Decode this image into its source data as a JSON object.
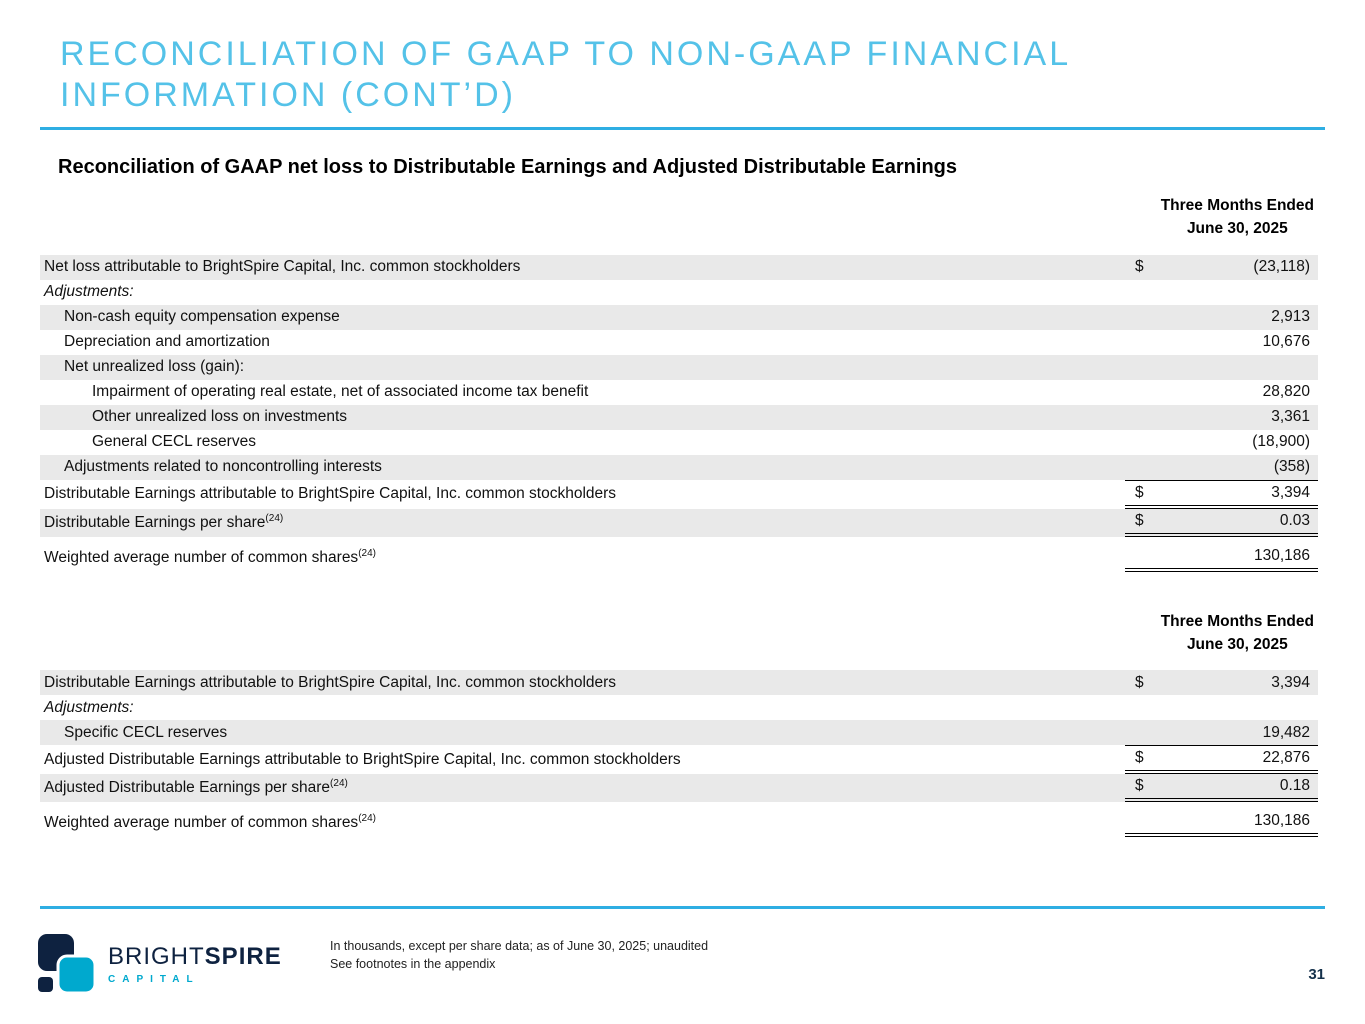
{
  "slide": {
    "title_line1": "RECONCILIATION OF GAAP TO NON-GAAP FINANCIAL",
    "title_line2": "INFORMATION (CONT’D)",
    "subtitle": "Reconciliation of GAAP net loss to Distributable Earnings and Adjusted Distributable Earnings"
  },
  "colors": {
    "accent_blue": "#54c2e8",
    "rule_blue": "#2faee3",
    "row_shade": "#e9e9e9",
    "logo_navy": "#0e2240",
    "logo_teal": "#00a9ce"
  },
  "table1": {
    "header_line1": "Three Months Ended",
    "header_line2": "June 30, 2025",
    "rows": [
      {
        "label": "Net loss attributable to BrightSpire Capital, Inc. common stockholders",
        "dollar": "$",
        "value": "(23,118)",
        "indent": 0,
        "shade": true
      },
      {
        "label": "Adjustments:",
        "italic": true,
        "indent": 0,
        "shade": false
      },
      {
        "label": "Non-cash equity compensation expense",
        "value": "2,913",
        "indent": 1,
        "shade": true
      },
      {
        "label": "Depreciation and amortization",
        "value": "10,676",
        "indent": 1,
        "shade": false
      },
      {
        "label": "Net unrealized loss (gain):",
        "indent": 1,
        "shade": true
      },
      {
        "label": "Impairment of operating real estate, net of associated income tax benefit",
        "value": "28,820",
        "indent": 2,
        "shade": false
      },
      {
        "label": "Other unrealized loss on investments",
        "value": "3,361",
        "indent": 2,
        "shade": true
      },
      {
        "label": "General CECL reserves",
        "value": "(18,900)",
        "indent": 2,
        "shade": false
      },
      {
        "label": "Adjustments related to noncontrolling interests",
        "value": "(358)",
        "indent": 1,
        "shade": true
      },
      {
        "label": "Distributable Earnings attributable to BrightSpire Capital, Inc. common stockholders",
        "dollar": "$",
        "value": "3,394",
        "indent": 0,
        "shade": false,
        "topline": true,
        "dbl": true
      },
      {
        "label": "Distributable Earnings per share",
        "sup": "(24)",
        "dollar": "$",
        "value": "0.03",
        "indent": 0,
        "shade": true,
        "dbl": true
      },
      {
        "label": "Weighted average number of common shares",
        "sup": "(24)",
        "value": "130,186",
        "indent": 0,
        "shade": false,
        "dbl": true,
        "gap": true
      }
    ]
  },
  "table2": {
    "header_line1": "Three Months Ended",
    "header_line2": "June 30, 2025",
    "rows": [
      {
        "label": "Distributable Earnings attributable to BrightSpire Capital, Inc. common stockholders",
        "dollar": "$",
        "value": "3,394",
        "indent": 0,
        "shade": true
      },
      {
        "label": "Adjustments:",
        "italic": true,
        "indent": 0,
        "shade": false
      },
      {
        "label": "Specific CECL reserves",
        "value": "19,482",
        "indent": 1,
        "shade": true
      },
      {
        "label": "Adjusted Distributable Earnings attributable to BrightSpire Capital, Inc. common stockholders",
        "dollar": "$",
        "value": "22,876",
        "indent": 0,
        "shade": false,
        "topline": true,
        "dbl": true
      },
      {
        "label": "Adjusted Distributable Earnings per share",
        "sup": "(24)",
        "dollar": "$",
        "value": "0.18",
        "indent": 0,
        "shade": true,
        "dbl": true
      },
      {
        "label": "Weighted average number of common shares",
        "sup": "(24)",
        "value": "130,186",
        "indent": 0,
        "shade": false,
        "dbl": true,
        "gap": true
      }
    ]
  },
  "logo": {
    "brand_bright": "BRIGHT",
    "brand_spire": "SPIRE",
    "brand_sub": "CAPITAL"
  },
  "footer": {
    "note_line1": "In thousands, except per share data; as of June 30, 2025; unaudited",
    "note_line2": "See footnotes in the appendix",
    "page_number": "31"
  }
}
